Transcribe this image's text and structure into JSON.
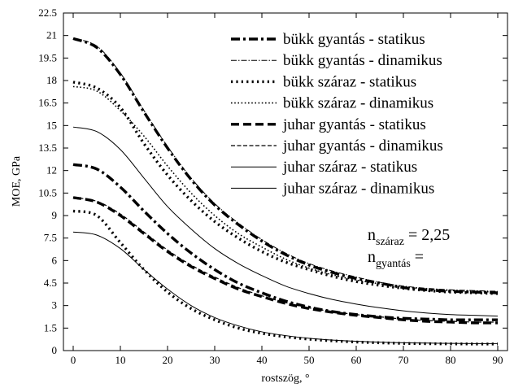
{
  "chart_data": {
    "type": "line",
    "xlabel": "rostszög, °",
    "ylabel": "MOE, GPa",
    "xlim": [
      0,
      90
    ],
    "ylim": [
      0,
      22.5
    ],
    "xticks": [
      0,
      10,
      20,
      30,
      40,
      50,
      60,
      70,
      80,
      90
    ],
    "yticks": [
      0,
      1.5,
      3,
      4.5,
      6,
      7.5,
      9,
      10.5,
      12,
      13.5,
      15,
      16.5,
      18,
      19.5,
      21,
      22.5
    ],
    "grid": false,
    "legend_position": "top-right",
    "x": [
      0,
      5,
      10,
      15,
      20,
      25,
      30,
      35,
      40,
      45,
      50,
      55,
      60,
      65,
      70,
      75,
      80,
      85,
      90
    ],
    "series": [
      {
        "name": "bükk gyantás - statikus",
        "style": "dashdot-heavy",
        "values": [
          20.8,
          20.2,
          18.4,
          15.9,
          13.5,
          11.4,
          9.7,
          8.4,
          7.3,
          6.4,
          5.7,
          5.2,
          4.8,
          4.5,
          4.2,
          4.05,
          3.95,
          3.9,
          3.85
        ]
      },
      {
        "name": "bükk gyantás - dinamikus",
        "style": "dashdot-thin",
        "values": [
          20.8,
          20.3,
          18.5,
          16.0,
          13.6,
          11.5,
          9.8,
          8.5,
          7.4,
          6.5,
          5.8,
          5.3,
          4.9,
          4.55,
          4.3,
          4.15,
          4.05,
          4.0,
          3.95
        ]
      },
      {
        "name": "bükk száraz - statikus",
        "style": "dotted-heavy",
        "values": [
          17.9,
          17.5,
          16.2,
          13.8,
          11.7,
          10.0,
          8.6,
          7.5,
          6.6,
          5.9,
          5.4,
          4.95,
          4.6,
          4.35,
          4.15,
          4.0,
          3.9,
          3.85,
          3.8
        ]
      },
      {
        "name": "bükk száraz - dinamikus",
        "style": "dotted-thin",
        "values": [
          17.6,
          17.3,
          16.0,
          14.3,
          12.3,
          10.5,
          9.0,
          7.8,
          6.9,
          6.1,
          5.5,
          5.05,
          4.7,
          4.45,
          4.25,
          4.1,
          4.0,
          3.95,
          3.9
        ]
      },
      {
        "name": "juhar gyantás - statikus",
        "style": "dashed-heavy",
        "values": [
          10.2,
          9.9,
          9.0,
          7.8,
          6.6,
          5.6,
          4.8,
          4.1,
          3.6,
          3.15,
          2.8,
          2.55,
          2.35,
          2.2,
          2.05,
          1.95,
          1.9,
          1.85,
          1.85
        ]
      },
      {
        "name": "juhar gyantás - dinamikus",
        "style": "dashed-thin",
        "values": [
          10.2,
          9.95,
          9.1,
          7.9,
          6.7,
          5.7,
          4.9,
          4.2,
          3.65,
          3.2,
          2.85,
          2.6,
          2.4,
          2.25,
          2.1,
          2.0,
          1.95,
          1.9,
          1.9
        ]
      },
      {
        "name": "juhar száraz - statikus",
        "style": "solid-thin",
        "values": [
          14.9,
          14.6,
          13.4,
          11.5,
          9.6,
          8.1,
          6.8,
          5.8,
          5.0,
          4.3,
          3.8,
          3.4,
          3.1,
          2.85,
          2.65,
          2.5,
          2.4,
          2.35,
          2.3
        ]
      },
      {
        "name": "juhar száraz - dinamikus",
        "style": "solid-thin",
        "values": [
          7.9,
          7.7,
          6.8,
          5.4,
          4.1,
          3.0,
          2.2,
          1.65,
          1.25,
          1.0,
          0.82,
          0.7,
          0.62,
          0.56,
          0.52,
          0.5,
          0.48,
          0.47,
          0.47
        ]
      },
      {
        "name": "",
        "style": "dotted-heavy",
        "values": [
          9.3,
          9.0,
          7.2,
          5.4,
          3.9,
          2.8,
          2.05,
          1.5,
          1.15,
          0.92,
          0.76,
          0.65,
          0.57,
          0.52,
          0.48,
          0.46,
          0.45,
          0.44,
          0.44
        ]
      },
      {
        "name": "",
        "style": "dashdot-heavy",
        "values": [
          12.4,
          12.1,
          10.9,
          9.3,
          7.8,
          6.5,
          5.4,
          4.5,
          3.85,
          3.3,
          2.9,
          2.6,
          2.4,
          2.25,
          2.15,
          2.1,
          2.05,
          2.05,
          2.05
        ]
      }
    ],
    "annotations": {
      "line1": {
        "base": "n",
        "sub": "száraz",
        "rest": " = 2,25"
      },
      "line2": {
        "base": "n",
        "sub": "gyantás",
        "rest": " ="
      }
    }
  }
}
